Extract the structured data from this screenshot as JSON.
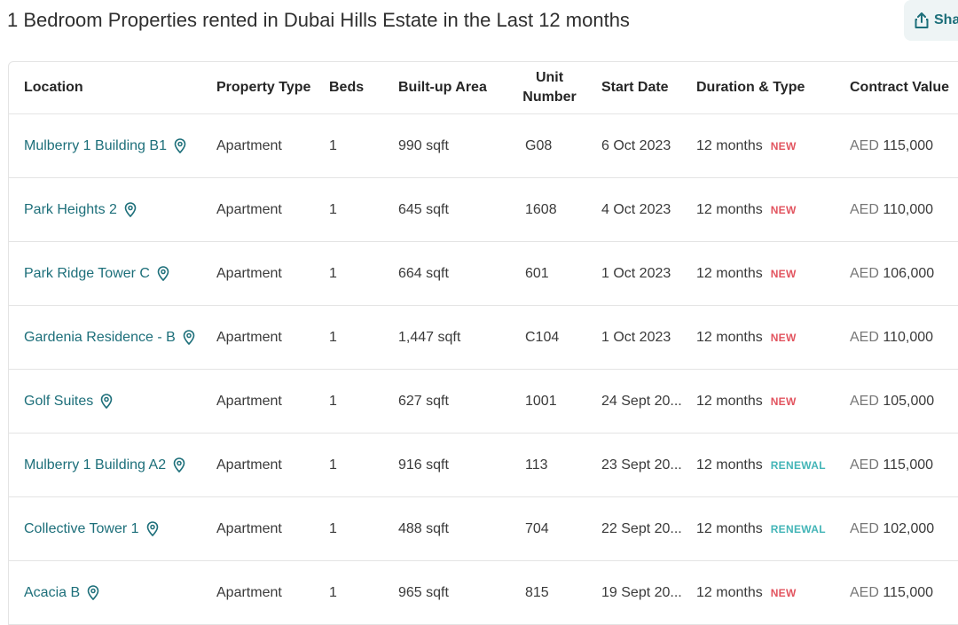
{
  "header": {
    "title": "1 Bedroom Properties rented in Dubai Hills Estate in the Last 12 months",
    "share_label": "Sha"
  },
  "table": {
    "columns": {
      "location": "Location",
      "property_type": "Property Type",
      "beds": "Beds",
      "built_up_area": "Built-up Area",
      "unit_number_line1": "Unit",
      "unit_number_line2": "Number",
      "start_date": "Start Date",
      "duration_type": "Duration & Type",
      "contract_value": "Contract Value"
    },
    "rows": [
      {
        "location": "Mulberry 1 Building B1",
        "property_type": "Apartment",
        "beds": "1",
        "area": "990 sqft",
        "unit": "G08",
        "start_date": "6 Oct 2023",
        "duration": "12 months",
        "type": "NEW",
        "currency": "AED",
        "value": "115,000"
      },
      {
        "location": "Park Heights 2",
        "property_type": "Apartment",
        "beds": "1",
        "area": "645 sqft",
        "unit": "1608",
        "start_date": "4 Oct 2023",
        "duration": "12 months",
        "type": "NEW",
        "currency": "AED",
        "value": "110,000"
      },
      {
        "location": "Park Ridge Tower C",
        "property_type": "Apartment",
        "beds": "1",
        "area": "664 sqft",
        "unit": "601",
        "start_date": "1 Oct 2023",
        "duration": "12 months",
        "type": "NEW",
        "currency": "AED",
        "value": "106,000"
      },
      {
        "location": "Gardenia Residence - B",
        "property_type": "Apartment",
        "beds": "1",
        "area": "1,447 sqft",
        "unit": "C104",
        "start_date": "1 Oct 2023",
        "duration": "12 months",
        "type": "NEW",
        "currency": "AED",
        "value": "110,000"
      },
      {
        "location": "Golf Suites",
        "property_type": "Apartment",
        "beds": "1",
        "area": "627 sqft",
        "unit": "1001",
        "start_date": "24 Sept 20...",
        "duration": "12 months",
        "type": "NEW",
        "currency": "AED",
        "value": "105,000"
      },
      {
        "location": "Mulberry 1 Building A2",
        "property_type": "Apartment",
        "beds": "1",
        "area": "916 sqft",
        "unit": "113",
        "start_date": "23 Sept 20...",
        "duration": "12 months",
        "type": "RENEWAL",
        "currency": "AED",
        "value": "115,000"
      },
      {
        "location": "Collective Tower 1",
        "property_type": "Apartment",
        "beds": "1",
        "area": "488 sqft",
        "unit": "704",
        "start_date": "22 Sept 20...",
        "duration": "12 months",
        "type": "RENEWAL",
        "currency": "AED",
        "value": "102,000"
      },
      {
        "location": "Acacia B",
        "property_type": "Apartment",
        "beds": "1",
        "area": "965 sqft",
        "unit": "815",
        "start_date": "19 Sept 20...",
        "duration": "12 months",
        "type": "NEW",
        "currency": "AED",
        "value": "115,000"
      }
    ]
  },
  "icons": {
    "share": "share-icon",
    "location_pin": "map-pin-icon"
  },
  "colors": {
    "link": "#1d6f7a",
    "badge_new": "#e2545f",
    "badge_renewal": "#43b5b7",
    "share_bg": "#eef4f5"
  }
}
